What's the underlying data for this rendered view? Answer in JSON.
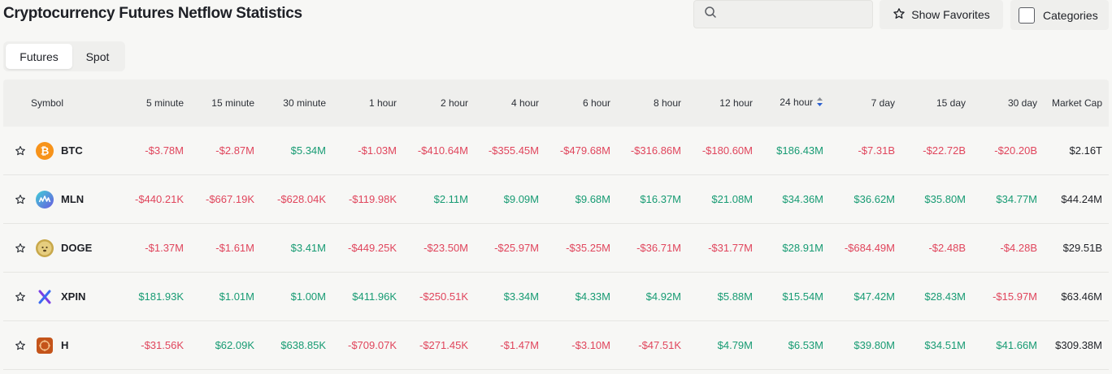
{
  "title": "Cryptocurrency Futures Netflow Statistics",
  "search": {
    "value": "",
    "placeholder": ""
  },
  "buttons": {
    "favorites": "Show Favorites",
    "categories": "Categories"
  },
  "tabs": [
    {
      "label": "Futures",
      "active": true
    },
    {
      "label": "Spot",
      "active": false
    }
  ],
  "columns": [
    "Symbol",
    "5 minute",
    "15 minute",
    "30 minute",
    "1 hour",
    "2 hour",
    "4 hour",
    "6 hour",
    "8 hour",
    "12 hour",
    "24 hour",
    "7 day",
    "15 day",
    "30 day",
    "Market Cap"
  ],
  "sorted_column": "24 hour",
  "colors": {
    "negative": "#e0455c",
    "positive": "#179b73"
  },
  "rows": [
    {
      "symbol": "BTC",
      "icon": "btc-coin-icon",
      "values": [
        "-$3.78M",
        "-$2.87M",
        "$5.34M",
        "-$1.03M",
        "-$410.64M",
        "-$355.45M",
        "-$479.68M",
        "-$316.86M",
        "-$180.60M",
        "$186.43M",
        "-$7.31B",
        "-$22.72B",
        "-$20.20B"
      ],
      "market_cap": "$2.16T"
    },
    {
      "symbol": "MLN",
      "icon": "mln-coin-icon",
      "values": [
        "-$440.21K",
        "-$667.19K",
        "-$628.04K",
        "-$119.98K",
        "$2.11M",
        "$9.09M",
        "$9.68M",
        "$16.37M",
        "$21.08M",
        "$34.36M",
        "$36.62M",
        "$35.80M",
        "$34.77M"
      ],
      "market_cap": "$44.24M"
    },
    {
      "symbol": "DOGE",
      "icon": "doge-coin-icon",
      "values": [
        "-$1.37M",
        "-$1.61M",
        "$3.41M",
        "-$449.25K",
        "-$23.50M",
        "-$25.97M",
        "-$35.25M",
        "-$36.71M",
        "-$31.77M",
        "$28.91M",
        "-$684.49M",
        "-$2.48B",
        "-$4.28B"
      ],
      "market_cap": "$29.51B"
    },
    {
      "symbol": "XPIN",
      "icon": "xpin-coin-icon",
      "values": [
        "$181.93K",
        "$1.01M",
        "$1.00M",
        "$411.96K",
        "-$250.51K",
        "$3.34M",
        "$4.33M",
        "$4.92M",
        "$5.88M",
        "$15.54M",
        "$47.42M",
        "$28.43M",
        "-$15.97M"
      ],
      "market_cap": "$63.46M"
    },
    {
      "symbol": "H",
      "icon": "h-coin-icon",
      "values": [
        "-$31.56K",
        "$62.09K",
        "$638.85K",
        "-$709.07K",
        "-$271.45K",
        "-$1.47M",
        "-$3.10M",
        "-$47.51K",
        "$4.79M",
        "$6.53M",
        "$39.80M",
        "$34.51M",
        "$41.66M"
      ],
      "market_cap": "$309.38M"
    }
  ]
}
